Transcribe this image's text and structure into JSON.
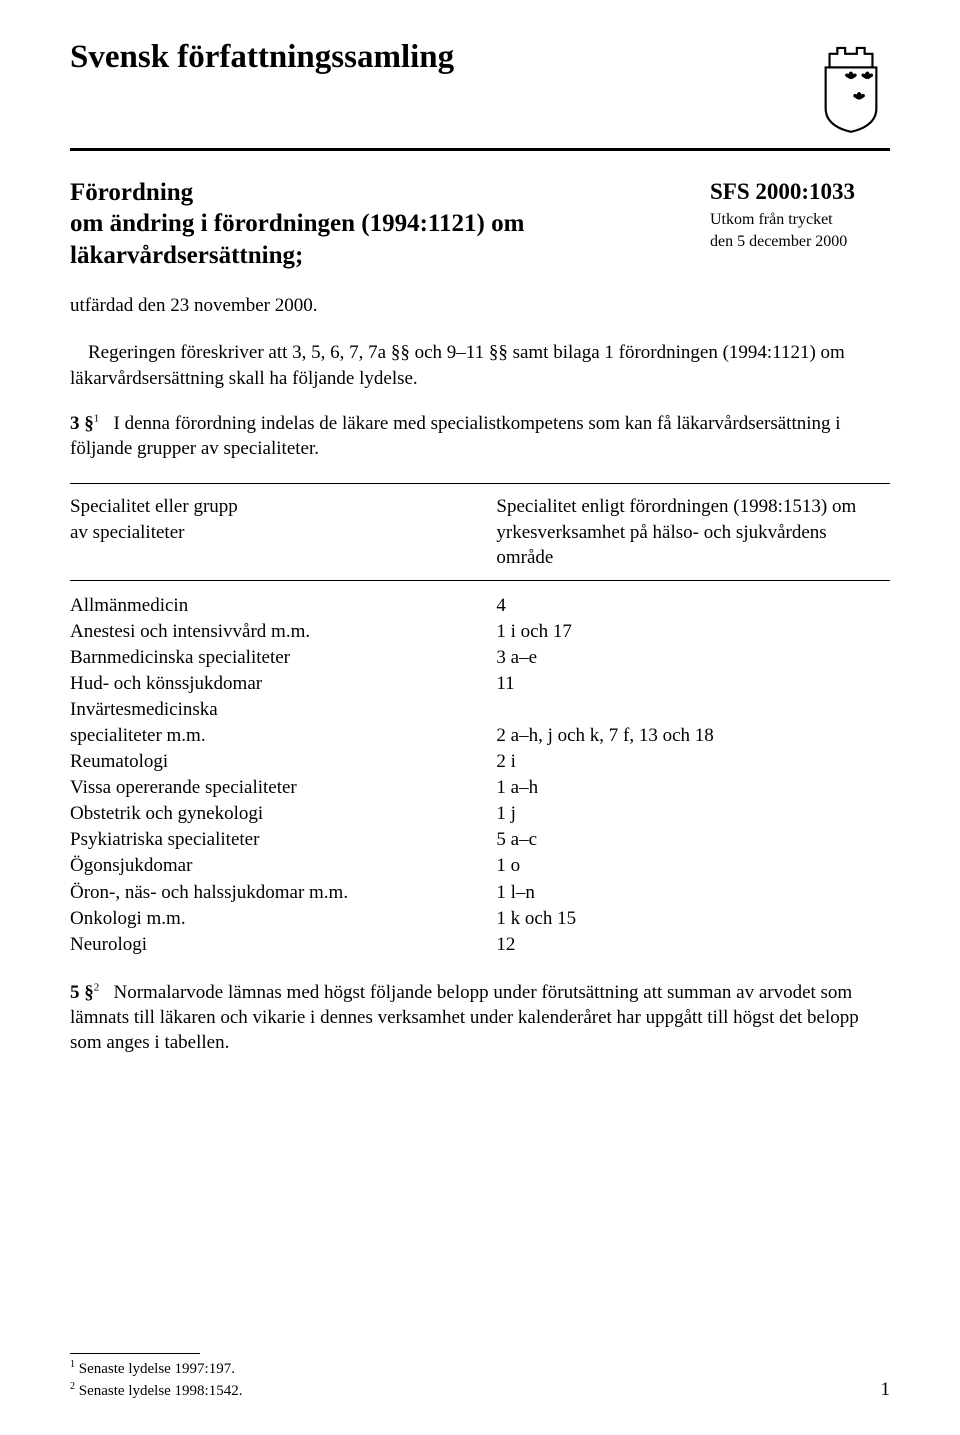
{
  "header": {
    "title": "Svensk författningssamling"
  },
  "regulation": {
    "title_line1": "Förordning",
    "title_line2": "om ändring i förordningen (1994:1121) om läkarvårdsersättning;",
    "sfs_number": "SFS 2000:1033",
    "print_info_line1": "Utkom från trycket",
    "print_info_line2": "den 5 december 2000",
    "issued": "utfärdad den 23 november 2000."
  },
  "preamble": "Regeringen föreskriver att 3, 5, 6, 7, 7a §§ och 9–11 §§ samt bilaga 1 förordningen (1994:1121) om läkarvårdsersättning skall ha följande lydelse.",
  "section3": {
    "label": "3 §",
    "footref": "1",
    "tail": "I denna förordning indelas de läkare med specialistkompetens som kan få läkarvårdsersättning i följande grupper av specialiteter."
  },
  "table": {
    "header_left": "Specialitet eller grupp\nav specialiteter",
    "header_right": "Specialitet enligt förordningen (1998:1513) om yrkesverksamhet på hälso- och sjukvårdens område",
    "rows": [
      {
        "left": "Allmänmedicin",
        "right": "4"
      },
      {
        "left": "Anestesi och intensivvård m.m.",
        "right": "1 i och 17"
      },
      {
        "left": "Barnmedicinska specialiteter",
        "right": "3 a–e"
      },
      {
        "left": "Hud- och könssjukdomar",
        "right": "11"
      },
      {
        "left": "Invärtesmedicinska",
        "right": ""
      },
      {
        "left": "specialiteter m.m.",
        "right": "2 a–h, j och k, 7 f, 13 och 18"
      },
      {
        "left": "Reumatologi",
        "right": "2 i"
      },
      {
        "left": "Vissa opererande specialiteter",
        "right": "1 a–h"
      },
      {
        "left": "Obstetrik och gynekologi",
        "right": "1 j"
      },
      {
        "left": "Psykiatriska specialiteter",
        "right": "5 a–c"
      },
      {
        "left": "Ögonsjukdomar",
        "right": "1 o"
      },
      {
        "left": "Öron-, näs- och halssjukdomar m.m.",
        "right": "1 l–n"
      },
      {
        "left": "Onkologi m.m.",
        "right": "1 k och 15"
      },
      {
        "left": "Neurologi",
        "right": "12"
      }
    ]
  },
  "section5": {
    "label": "5 §",
    "footref": "2",
    "tail": "Normalarvode lämnas med högst följande belopp under förutsättning att summan av arvodet som lämnats till läkaren och vikarie i dennes verksamhet under kalenderåret har uppgått till högst det belopp som anges i tabellen."
  },
  "footnotes": {
    "fn1": {
      "ref": "1",
      "text": "Senaste lydelse 1997:197."
    },
    "fn2": {
      "ref": "2",
      "text": "Senaste lydelse 1998:1542."
    }
  },
  "page_number": "1"
}
